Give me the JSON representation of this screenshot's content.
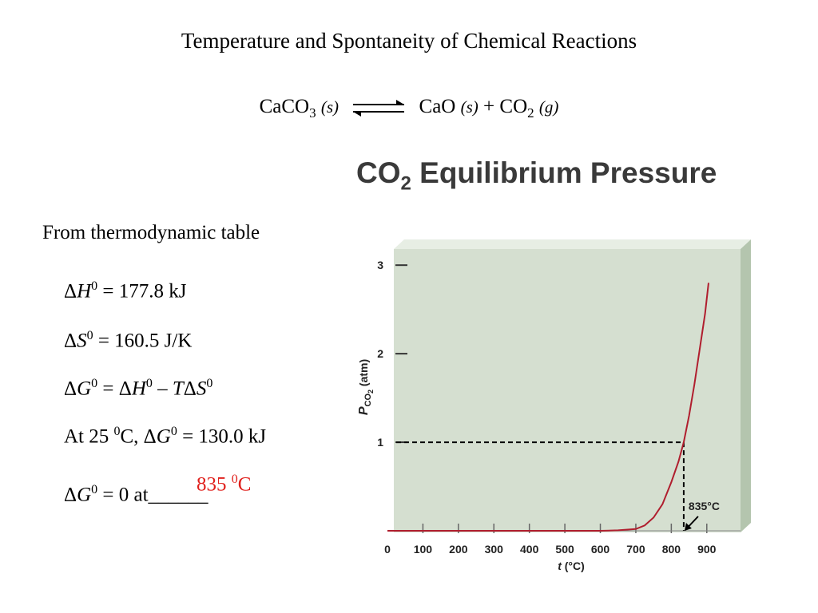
{
  "slide": {
    "title": "Temperature and Spontaneity of Chemical Reactions",
    "reaction": {
      "reactant": "CaCO",
      "reactant_sub": "3",
      "reactant_state": "(s)",
      "product1": "CaO",
      "product1_state": "(s)",
      "plus": "+",
      "product2": "CO",
      "product2_sub": "2",
      "product2_state": "(g)"
    },
    "intro": "From thermodynamic table",
    "equations": {
      "dH_prefix": "Δ",
      "dH_var": "H",
      "dH_sup": "0",
      "dH_rest": " = 177.8 kJ",
      "dS_prefix": "Δ",
      "dS_var": "S",
      "dS_sup": "0",
      "dS_rest": " = 160.5 J/K",
      "dG_prefix": "Δ",
      "dG_var": "G",
      "dG_sup": "0",
      "dG_eq": " = Δ",
      "dG_h": "H",
      "dG_hsup": "0",
      "dG_minus": " – ",
      "dG_t": "T",
      "dG_delta": "Δ",
      "dG_s": "S",
      "dG_ssup": "0",
      "at25_a": "At 25 ",
      "at25_sup": "0",
      "at25_b": "C, Δ",
      "at25_g": "G",
      "at25_gsup": "0",
      "at25_rest": " = 130.0 kJ",
      "zero_prefix": "Δ",
      "zero_var": "G",
      "zero_sup": "0",
      "zero_rest": " = 0 at______"
    },
    "answer": {
      "value": "835 ",
      "sup": "0",
      "unit": "C",
      "color": "#e0201c"
    }
  },
  "chart_data": {
    "type": "line",
    "title": "CO",
    "title_sub": "2",
    "title_rest": " Equilibrium Pressure",
    "xlabel": "t",
    "xlabel_unit": " (°C)",
    "ylabel": "P",
    "ylabel_sub": "CO",
    "ylabel_subsub": "2",
    "ylabel_unit": " (atm)",
    "xlim": [
      0,
      950
    ],
    "ylim": [
      0,
      3.2
    ],
    "x_ticks": [
      0,
      100,
      200,
      300,
      400,
      500,
      600,
      700,
      800,
      900
    ],
    "x_tick_labels": [
      "0",
      "100",
      "200",
      "300",
      "400",
      "500",
      "600",
      "700",
      "800",
      "900"
    ],
    "y_ticks": [
      1,
      2,
      3
    ],
    "y_tick_labels": [
      "1",
      "2",
      "3"
    ],
    "series": [
      {
        "color": "#b01e2e",
        "x": [
          0,
          100,
          200,
          300,
          400,
          500,
          600,
          650,
          700,
          725,
          750,
          775,
          800,
          820,
          835,
          850,
          865,
          880,
          895,
          905
        ],
        "y": [
          0.0,
          0.0,
          0.0,
          0.0,
          0.0,
          0.0,
          0.0,
          0.005,
          0.02,
          0.06,
          0.15,
          0.3,
          0.55,
          0.78,
          1.0,
          1.3,
          1.65,
          2.05,
          2.45,
          2.8
        ]
      }
    ],
    "annotation": {
      "text": "835°C",
      "x": 835,
      "y": 1.0
    },
    "grid": false,
    "colors": {
      "panel": "#d5dfd0",
      "panel_side": "#b4c5ae",
      "panel_top": "#e7eee4"
    }
  }
}
